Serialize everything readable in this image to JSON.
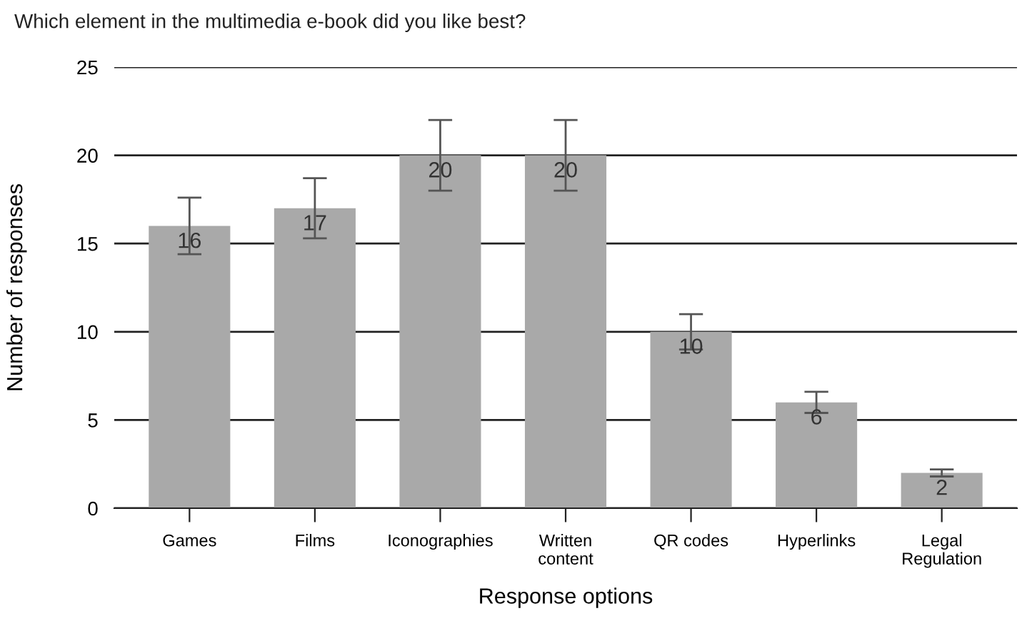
{
  "chart_data": {
    "type": "bar",
    "title": "Which element in the multimedia e-book did you like best?",
    "xlabel": "Response options",
    "ylabel": "Number of responses",
    "categories": [
      "Games",
      "Films",
      "Iconographies",
      "Written\ncontent",
      "QR codes",
      "Hyperlinks",
      "Legal\nRegulation"
    ],
    "values": [
      16,
      17,
      20,
      20,
      10,
      6,
      2
    ],
    "errors": [
      1.6,
      1.7,
      2,
      2,
      1,
      0.6,
      0.2
    ],
    "color": "#a9a9a9",
    "ylim": [
      0,
      25
    ],
    "yticks": [
      0,
      5,
      10,
      15,
      20,
      25
    ],
    "grid": "y",
    "data_labels": true
  }
}
